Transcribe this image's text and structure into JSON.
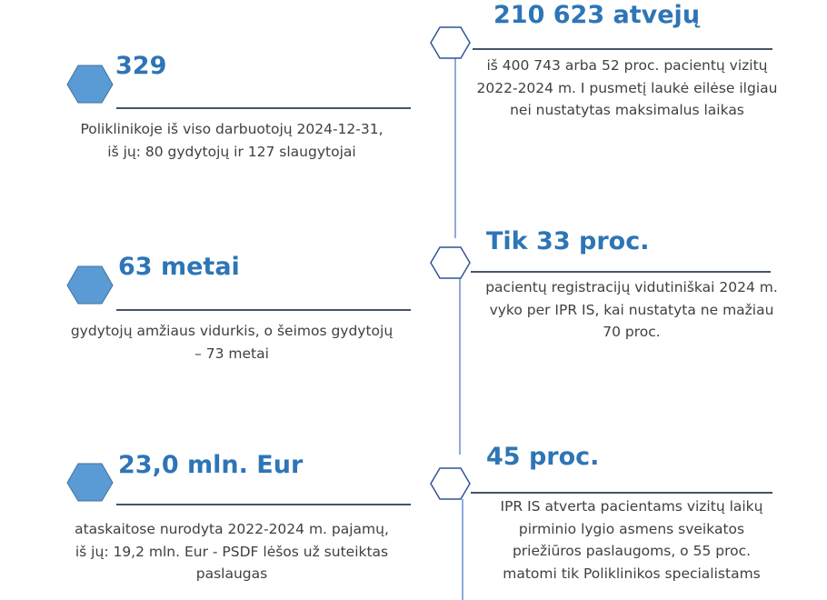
{
  "colors": {
    "accent": "#2E75B6",
    "hex_fill": "#5B9BD5",
    "hex_outline": "#2F5597",
    "timeline": "#8FAADC",
    "text": "#404040"
  },
  "left": [
    {
      "title": "329",
      "lines": [
        "Poliklinikoje iš viso darbuotojų 2024-12-31,",
        "iš jų: 80 gydytojų ir 127 slaugytojai"
      ]
    },
    {
      "title": "63 metai",
      "lines": [
        "gydytojų amžiaus vidurkis, o šeimos gydytojų",
        "– 73 metai"
      ]
    },
    {
      "title": "23,0 mln. Eur",
      "lines": [
        "ataskaitose nurodyta 2022-2024 m. pajamų,",
        "iš jų: 19,2 mln. Eur - PSDF lėšos už suteiktas",
        "paslaugas"
      ]
    }
  ],
  "right": [
    {
      "title": "210 623 atvejų",
      "lines": [
        "iš 400 743 arba 52 proc. pacientų vizitų",
        "2022-2024 m. I pusmetį laukė eilėse ilgiau",
        "nei nustatytas maksimalus laikas"
      ]
    },
    {
      "title": "Tik 33 proc.",
      "lines": [
        "pacientų registracijų vidutiniškai 2024 m.",
        "vyko per IPR IS, kai nustatyta ne mažiau",
        "70 proc."
      ]
    },
    {
      "title": "45 proc.",
      "lines": [
        "IPR IS atverta pacientams vizitų laikų",
        "pirminio lygio asmens sveikatos",
        "priežiūros paslaugoms, o 55 proc.",
        "matomi tik Poliklinikos specialistams"
      ]
    }
  ]
}
